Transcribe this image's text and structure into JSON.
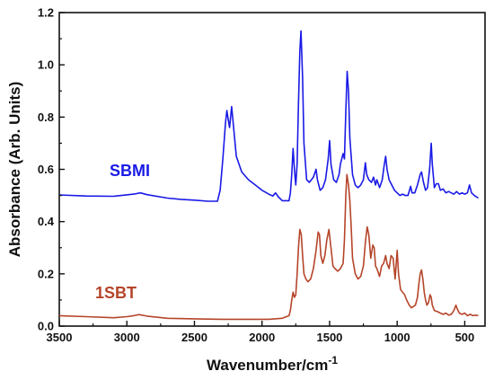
{
  "chart_data": {
    "type": "line",
    "xlabel": "Wavenumber/cm",
    "xlabel_superscript": "-1",
    "ylabel": "Absorbance (Arb. Units)",
    "x_reversed": true,
    "xlim": [
      3500,
      350
    ],
    "ylim": [
      0.0,
      1.2
    ],
    "xticks": [
      3500,
      3000,
      2500,
      2000,
      1500,
      1000,
      500
    ],
    "yticks": [
      0.0,
      0.2,
      0.4,
      0.6,
      0.8,
      1.0,
      1.2
    ],
    "xtick_labels": [
      "3500",
      "3000",
      "2500",
      "2000",
      "1500",
      "1000",
      "500"
    ],
    "ytick_labels": [
      "0.0",
      "0.2",
      "0.4",
      "0.6",
      "0.8",
      "1.0",
      "1.2"
    ],
    "grid": false,
    "series": [
      {
        "name": "SBMI",
        "color": "#1a1ae6",
        "points": [
          [
            3500,
            0.502
          ],
          [
            3300,
            0.498
          ],
          [
            3100,
            0.497
          ],
          [
            2950,
            0.505
          ],
          [
            2900,
            0.51
          ],
          [
            2850,
            0.503
          ],
          [
            2700,
            0.49
          ],
          [
            2600,
            0.485
          ],
          [
            2500,
            0.482
          ],
          [
            2400,
            0.478
          ],
          [
            2330,
            0.478
          ],
          [
            2310,
            0.52
          ],
          [
            2290,
            0.64
          ],
          [
            2270,
            0.78
          ],
          [
            2260,
            0.825
          ],
          [
            2250,
            0.79
          ],
          [
            2240,
            0.76
          ],
          [
            2225,
            0.84
          ],
          [
            2210,
            0.76
          ],
          [
            2190,
            0.65
          ],
          [
            2150,
            0.59
          ],
          [
            2100,
            0.56
          ],
          [
            2050,
            0.54
          ],
          [
            2000,
            0.52
          ],
          [
            1950,
            0.505
          ],
          [
            1920,
            0.498
          ],
          [
            1900,
            0.51
          ],
          [
            1880,
            0.495
          ],
          [
            1850,
            0.48
          ],
          [
            1800,
            0.48
          ],
          [
            1790,
            0.51
          ],
          [
            1780,
            0.58
          ],
          [
            1770,
            0.68
          ],
          [
            1760,
            0.6
          ],
          [
            1750,
            0.54
          ],
          [
            1740,
            0.62
          ],
          [
            1730,
            0.85
          ],
          [
            1720,
            1.05
          ],
          [
            1712,
            1.13
          ],
          [
            1700,
            0.95
          ],
          [
            1690,
            0.7
          ],
          [
            1670,
            0.56
          ],
          [
            1650,
            0.55
          ],
          [
            1620,
            0.57
          ],
          [
            1600,
            0.6
          ],
          [
            1590,
            0.56
          ],
          [
            1570,
            0.52
          ],
          [
            1550,
            0.53
          ],
          [
            1530,
            0.56
          ],
          [
            1510,
            0.64
          ],
          [
            1500,
            0.71
          ],
          [
            1490,
            0.62
          ],
          [
            1470,
            0.56
          ],
          [
            1450,
            0.55
          ],
          [
            1430,
            0.58
          ],
          [
            1420,
            0.62
          ],
          [
            1400,
            0.66
          ],
          [
            1390,
            0.64
          ],
          [
            1380,
            0.82
          ],
          [
            1370,
            0.975
          ],
          [
            1360,
            0.9
          ],
          [
            1350,
            0.72
          ],
          [
            1330,
            0.58
          ],
          [
            1310,
            0.54
          ],
          [
            1290,
            0.53
          ],
          [
            1270,
            0.54
          ],
          [
            1250,
            0.56
          ],
          [
            1235,
            0.625
          ],
          [
            1225,
            0.58
          ],
          [
            1210,
            0.56
          ],
          [
            1190,
            0.55
          ],
          [
            1175,
            0.57
          ],
          [
            1160,
            0.54
          ],
          [
            1150,
            0.56
          ],
          [
            1130,
            0.53
          ],
          [
            1110,
            0.56
          ],
          [
            1095,
            0.62
          ],
          [
            1085,
            0.65
          ],
          [
            1075,
            0.6
          ],
          [
            1060,
            0.56
          ],
          [
            1040,
            0.54
          ],
          [
            1020,
            0.52
          ],
          [
            1000,
            0.51
          ],
          [
            980,
            0.5
          ],
          [
            960,
            0.505
          ],
          [
            940,
            0.5
          ],
          [
            920,
            0.5
          ],
          [
            900,
            0.535
          ],
          [
            890,
            0.51
          ],
          [
            870,
            0.51
          ],
          [
            850,
            0.54
          ],
          [
            830,
            0.58
          ],
          [
            820,
            0.59
          ],
          [
            805,
            0.55
          ],
          [
            790,
            0.52
          ],
          [
            775,
            0.53
          ],
          [
            760,
            0.6
          ],
          [
            748,
            0.7
          ],
          [
            740,
            0.62
          ],
          [
            725,
            0.53
          ],
          [
            710,
            0.545
          ],
          [
            695,
            0.545
          ],
          [
            680,
            0.52
          ],
          [
            660,
            0.525
          ],
          [
            640,
            0.51
          ],
          [
            620,
            0.515
          ],
          [
            600,
            0.51
          ],
          [
            580,
            0.505
          ],
          [
            560,
            0.515
          ],
          [
            540,
            0.505
          ],
          [
            520,
            0.51
          ],
          [
            500,
            0.505
          ],
          [
            480,
            0.51
          ],
          [
            465,
            0.54
          ],
          [
            450,
            0.51
          ],
          [
            430,
            0.5
          ],
          [
            400,
            0.49
          ]
        ]
      },
      {
        "name": "1SBT",
        "color": "#b5452a",
        "points": [
          [
            3500,
            0.04
          ],
          [
            3300,
            0.036
          ],
          [
            3100,
            0.032
          ],
          [
            3000,
            0.036
          ],
          [
            2950,
            0.04
          ],
          [
            2910,
            0.044
          ],
          [
            2850,
            0.038
          ],
          [
            2700,
            0.03
          ],
          [
            2500,
            0.028
          ],
          [
            2300,
            0.026
          ],
          [
            2100,
            0.026
          ],
          [
            1950,
            0.026
          ],
          [
            1850,
            0.03
          ],
          [
            1800,
            0.04
          ],
          [
            1790,
            0.06
          ],
          [
            1780,
            0.1
          ],
          [
            1770,
            0.13
          ],
          [
            1760,
            0.11
          ],
          [
            1750,
            0.12
          ],
          [
            1740,
            0.2
          ],
          [
            1730,
            0.3
          ],
          [
            1720,
            0.37
          ],
          [
            1710,
            0.35
          ],
          [
            1700,
            0.27
          ],
          [
            1690,
            0.2
          ],
          [
            1675,
            0.18
          ],
          [
            1660,
            0.17
          ],
          [
            1640,
            0.18
          ],
          [
            1620,
            0.22
          ],
          [
            1600,
            0.29
          ],
          [
            1585,
            0.36
          ],
          [
            1575,
            0.35
          ],
          [
            1565,
            0.27
          ],
          [
            1550,
            0.24
          ],
          [
            1535,
            0.27
          ],
          [
            1520,
            0.33
          ],
          [
            1505,
            0.37
          ],
          [
            1490,
            0.3
          ],
          [
            1475,
            0.23
          ],
          [
            1460,
            0.22
          ],
          [
            1440,
            0.21
          ],
          [
            1420,
            0.22
          ],
          [
            1400,
            0.24
          ],
          [
            1390,
            0.33
          ],
          [
            1380,
            0.5
          ],
          [
            1372,
            0.58
          ],
          [
            1360,
            0.54
          ],
          [
            1350,
            0.48
          ],
          [
            1340,
            0.38
          ],
          [
            1330,
            0.26
          ],
          [
            1310,
            0.2
          ],
          [
            1290,
            0.18
          ],
          [
            1270,
            0.19
          ],
          [
            1250,
            0.23
          ],
          [
            1235,
            0.32
          ],
          [
            1222,
            0.38
          ],
          [
            1210,
            0.35
          ],
          [
            1195,
            0.26
          ],
          [
            1180,
            0.31
          ],
          [
            1170,
            0.3
          ],
          [
            1160,
            0.23
          ],
          [
            1150,
            0.22
          ],
          [
            1130,
            0.19
          ],
          [
            1115,
            0.23
          ],
          [
            1100,
            0.24
          ],
          [
            1085,
            0.27
          ],
          [
            1075,
            0.24
          ],
          [
            1060,
            0.22
          ],
          [
            1045,
            0.27
          ],
          [
            1030,
            0.26
          ],
          [
            1015,
            0.18
          ],
          [
            1000,
            0.29
          ],
          [
            990,
            0.2
          ],
          [
            975,
            0.14
          ],
          [
            960,
            0.13
          ],
          [
            945,
            0.12
          ],
          [
            930,
            0.1
          ],
          [
            910,
            0.08
          ],
          [
            895,
            0.07
          ],
          [
            880,
            0.075
          ],
          [
            865,
            0.08
          ],
          [
            850,
            0.11
          ],
          [
            840,
            0.16
          ],
          [
            830,
            0.2
          ],
          [
            820,
            0.215
          ],
          [
            810,
            0.18
          ],
          [
            800,
            0.13
          ],
          [
            790,
            0.1
          ],
          [
            780,
            0.08
          ],
          [
            768,
            0.09
          ],
          [
            757,
            0.12
          ],
          [
            748,
            0.11
          ],
          [
            740,
            0.08
          ],
          [
            725,
            0.06
          ],
          [
            700,
            0.055
          ],
          [
            680,
            0.05
          ],
          [
            660,
            0.045
          ],
          [
            640,
            0.05
          ],
          [
            620,
            0.042
          ],
          [
            600,
            0.045
          ],
          [
            580,
            0.06
          ],
          [
            565,
            0.08
          ],
          [
            555,
            0.065
          ],
          [
            540,
            0.05
          ],
          [
            520,
            0.045
          ],
          [
            500,
            0.05
          ],
          [
            480,
            0.04
          ],
          [
            460,
            0.045
          ],
          [
            440,
            0.04
          ],
          [
            420,
            0.042
          ],
          [
            400,
            0.04
          ]
        ]
      }
    ]
  }
}
